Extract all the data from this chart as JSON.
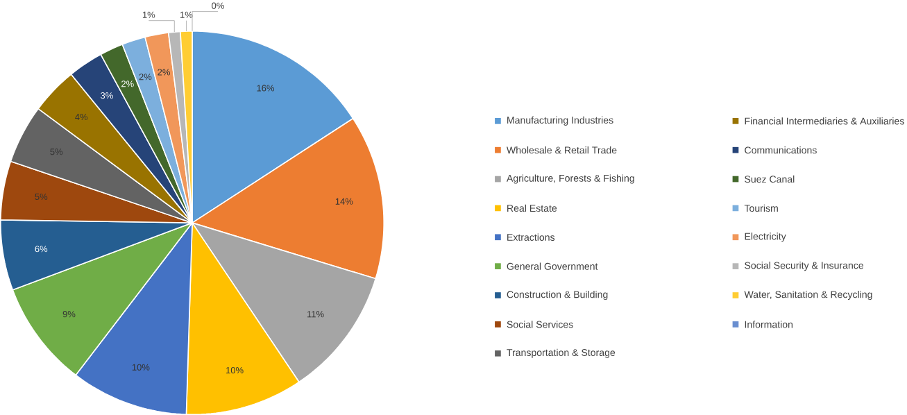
{
  "chart_data": {
    "type": "pie",
    "categories": [
      "Manufacturing Industries",
      "Wholesale & Retail Trade",
      "Agriculture, Forests & Fishing",
      "Real Estate",
      "Extractions",
      "General Government",
      "Construction & Building",
      "Social Services",
      "Transportation & Storage",
      "Financial Intermediaries & Auxiliaries",
      "Communications",
      "Suez Canal",
      "Tourism",
      "Electricity",
      "Social Security & Insurance",
      "Water, Sanitation & Recycling",
      "Information"
    ],
    "values": [
      16,
      14,
      11,
      10,
      10,
      9,
      6,
      5,
      5,
      4,
      3,
      2,
      2,
      2,
      1,
      1,
      0
    ],
    "value_labels": [
      "16%",
      "14%",
      "11%",
      "10%",
      "10%",
      "9%",
      "6%",
      "5%",
      "5%",
      "4%",
      "3%",
      "2%",
      "2%",
      "2%",
      "1%",
      "1%",
      "0%"
    ],
    "colors": [
      "#5b9bd5",
      "#ed7d31",
      "#a5a5a5",
      "#ffc000",
      "#4472c4",
      "#70ad47",
      "#255e91",
      "#9e480e",
      "#636363",
      "#997300",
      "#264478",
      "#43682b",
      "#7cafdd",
      "#f1975a",
      "#b7b7b7",
      "#ffcd33",
      "#698ed0"
    ],
    "legend": "right"
  }
}
